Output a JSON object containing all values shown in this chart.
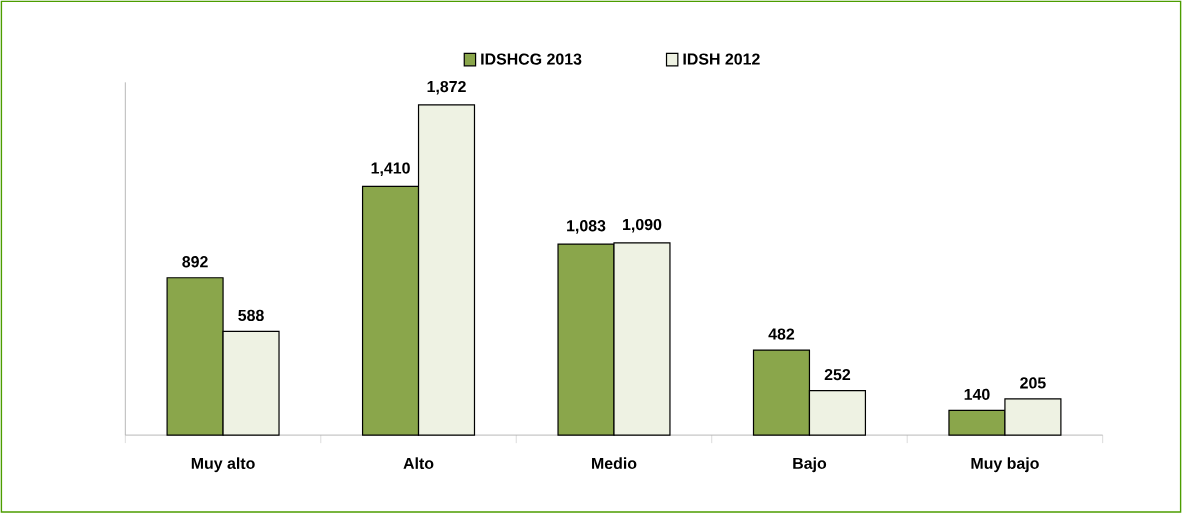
{
  "chart_data": {
    "type": "bar",
    "categories": [
      "Muy alto",
      "Alto",
      "Medio",
      "Bajo",
      "Muy bajo"
    ],
    "series": [
      {
        "name": "IDSHCG 2013",
        "color": "#8aa64b",
        "values": [
          892,
          1410,
          1083,
          482,
          140
        ],
        "value_labels": [
          "892",
          "1,410",
          "1,083",
          "482",
          "140"
        ]
      },
      {
        "name": "IDSH 2012",
        "color": "#eef2e3",
        "values": [
          588,
          1872,
          1090,
          252,
          205
        ],
        "value_labels": [
          "588",
          "1,872",
          "1,090",
          "252",
          "205"
        ]
      }
    ],
    "ylim": [
      0,
      2000
    ],
    "legend": "top"
  }
}
